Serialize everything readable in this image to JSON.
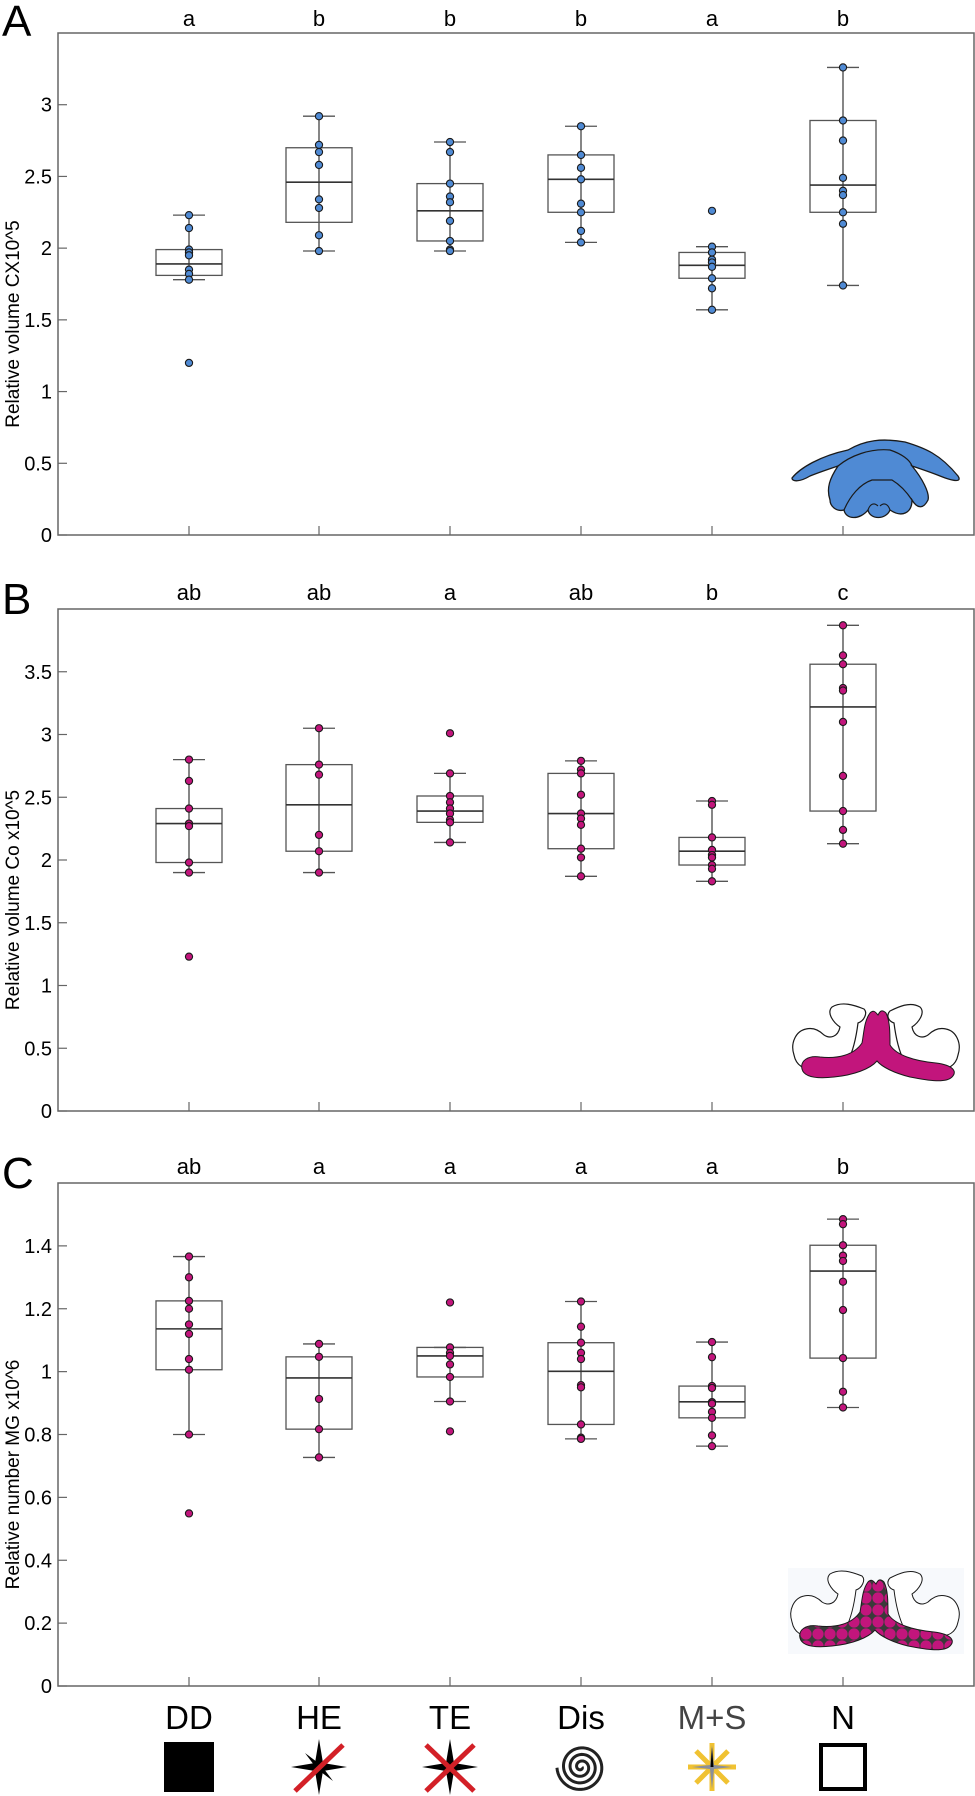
{
  "figure": {
    "categories": [
      "DD",
      "HE",
      "TE",
      "Dis",
      "M+S",
      "N"
    ],
    "category_label_colors": [
      "#000000",
      "#000000",
      "#000000",
      "#000000",
      "#444444",
      "#000000"
    ],
    "category_symbols": [
      {
        "name": "filled-square-icon",
        "desc": "black filled square"
      },
      {
        "name": "crossed-star-icon",
        "desc": "black compass star with single red slash"
      },
      {
        "name": "double-crossed-star-icon",
        "desc": "black compass star with red X"
      },
      {
        "name": "spiral-icon",
        "desc": "black spiral"
      },
      {
        "name": "yellow-asterisk-star-icon",
        "desc": "yellow asterisk over grey star"
      },
      {
        "name": "open-square-icon",
        "desc": "open black square"
      }
    ],
    "colors": {
      "blue_point": "#4f8ad4",
      "magenta_point": "#c2157c",
      "box_stroke": "#555555",
      "axis": "#666666",
      "red_cross": "#d32027",
      "yellow_star": "#f0c232"
    }
  },
  "chart_data": [
    {
      "type": "box",
      "panel": "A",
      "title": "",
      "xlabel": "",
      "ylabel": "Relative volume CX10^5",
      "ylim": [
        0,
        3.5
      ],
      "yticks": [
        0,
        0.5,
        1,
        1.5,
        2,
        2.5,
        3
      ],
      "ytick_labels": [
        "0",
        "0.5",
        "1",
        "1.5",
        "2",
        "2.5",
        "3"
      ],
      "point_color": "#4f8ad4",
      "inset": "blue-brain-cx-icon",
      "categories": [
        "DD",
        "HE",
        "TE",
        "Dis",
        "M+S",
        "N"
      ],
      "significance": [
        "a",
        "b",
        "b",
        "b",
        "a",
        "b"
      ],
      "series": [
        {
          "name": "DD",
          "q1": 1.81,
          "median": 1.89,
          "q3": 1.99,
          "whisker_low": 1.78,
          "whisker_high": 2.23,
          "points": [
            2.23,
            2.14,
            1.99,
            1.97,
            1.95,
            1.85,
            1.82,
            1.78,
            1.2
          ]
        },
        {
          "name": "HE",
          "q1": 2.18,
          "median": 2.46,
          "q3": 2.7,
          "whisker_low": 1.98,
          "whisker_high": 2.92,
          "points": [
            2.92,
            2.72,
            2.67,
            2.58,
            2.34,
            2.28,
            2.09,
            1.98
          ]
        },
        {
          "name": "TE",
          "q1": 2.05,
          "median": 2.26,
          "q3": 2.45,
          "whisker_low": 1.98,
          "whisker_high": 2.74,
          "points": [
            2.74,
            2.67,
            2.45,
            2.36,
            2.32,
            2.19,
            2.05,
            1.99,
            1.98
          ]
        },
        {
          "name": "Dis",
          "q1": 2.25,
          "median": 2.48,
          "q3": 2.65,
          "whisker_low": 2.04,
          "whisker_high": 2.85,
          "points": [
            2.85,
            2.65,
            2.56,
            2.48,
            2.31,
            2.25,
            2.12,
            2.04
          ]
        },
        {
          "name": "M+S",
          "q1": 1.79,
          "median": 1.88,
          "q3": 1.97,
          "whisker_low": 1.57,
          "whisker_high": 2.01,
          "points": [
            2.26,
            2.01,
            1.97,
            1.92,
            1.9,
            1.87,
            1.79,
            1.72,
            1.57
          ]
        },
        {
          "name": "N",
          "q1": 2.25,
          "median": 2.44,
          "q3": 2.89,
          "whisker_low": 1.74,
          "whisker_high": 3.26,
          "points": [
            3.26,
            2.89,
            2.75,
            2.49,
            2.4,
            2.37,
            2.25,
            2.17,
            1.74
          ]
        }
      ]
    },
    {
      "type": "box",
      "panel": "B",
      "title": "",
      "xlabel": "",
      "ylabel": "Relative volume Co x10^5",
      "ylim": [
        0,
        4
      ],
      "yticks": [
        0,
        0.5,
        1,
        1.5,
        2,
        2.5,
        3,
        3.5
      ],
      "ytick_labels": [
        "0",
        "0.5",
        "1",
        "1.5",
        "2",
        "2.5",
        "3",
        "3.5"
      ],
      "point_color": "#c2157c",
      "inset": "magenta-brain-co-icon",
      "categories": [
        "DD",
        "HE",
        "TE",
        "Dis",
        "M+S",
        "N"
      ],
      "significance": [
        "ab",
        "ab",
        "a",
        "ab",
        "b",
        "c"
      ],
      "series": [
        {
          "name": "DD",
          "q1": 1.98,
          "median": 2.29,
          "q3": 2.41,
          "whisker_low": 1.9,
          "whisker_high": 2.8,
          "points": [
            2.8,
            2.63,
            2.41,
            2.29,
            2.27,
            1.98,
            1.9,
            1.23
          ]
        },
        {
          "name": "HE",
          "q1": 2.07,
          "median": 2.44,
          "q3": 2.76,
          "whisker_low": 1.9,
          "whisker_high": 3.05,
          "points": [
            3.05,
            2.76,
            2.68,
            2.2,
            2.07,
            1.9
          ]
        },
        {
          "name": "TE",
          "q1": 2.3,
          "median": 2.39,
          "q3": 2.51,
          "whisker_low": 2.14,
          "whisker_high": 2.69,
          "points": [
            3.01,
            2.69,
            2.51,
            2.46,
            2.41,
            2.37,
            2.32,
            2.3,
            2.14
          ]
        },
        {
          "name": "Dis",
          "q1": 2.09,
          "median": 2.37,
          "q3": 2.69,
          "whisker_low": 1.87,
          "whisker_high": 2.79,
          "points": [
            2.79,
            2.72,
            2.69,
            2.52,
            2.37,
            2.33,
            2.28,
            2.09,
            2.02,
            1.87
          ]
        },
        {
          "name": "M+S",
          "q1": 1.96,
          "median": 2.07,
          "q3": 2.18,
          "whisker_low": 1.83,
          "whisker_high": 2.47,
          "points": [
            2.47,
            2.44,
            2.18,
            2.08,
            2.04,
            2.02,
            1.96,
            1.93,
            1.83
          ]
        },
        {
          "name": "N",
          "q1": 2.39,
          "median": 3.22,
          "q3": 3.56,
          "whisker_low": 2.13,
          "whisker_high": 3.87,
          "points": [
            3.87,
            3.63,
            3.56,
            3.37,
            3.35,
            3.1,
            2.67,
            2.39,
            2.24,
            2.13
          ]
        }
      ]
    },
    {
      "type": "box",
      "panel": "C",
      "title": "",
      "xlabel": "",
      "ylabel": "Relative number MG x10^6",
      "ylim": [
        0,
        1.6
      ],
      "yticks": [
        0,
        0.2,
        0.4,
        0.6,
        0.8,
        1,
        1.2,
        1.4
      ],
      "ytick_labels": [
        "0",
        "0.2",
        "0.4",
        "0.6",
        "0.8",
        "1",
        "1.2",
        "1.4"
      ],
      "point_color": "#c2157c",
      "inset": "magenta-brain-mg-cells-icon",
      "categories": [
        "DD",
        "HE",
        "TE",
        "Dis",
        "M+S",
        "N"
      ],
      "significance": [
        "ab",
        "a",
        "a",
        "a",
        "a",
        "b"
      ],
      "series": [
        {
          "name": "DD",
          "q1": 1.006,
          "median": 1.136,
          "q3": 1.225,
          "whisker_low": 0.8,
          "whisker_high": 1.366,
          "points": [
            1.366,
            1.3,
            1.225,
            1.2,
            1.15,
            1.12,
            1.04,
            1.006,
            0.8,
            0.549
          ]
        },
        {
          "name": "HE",
          "q1": 0.817,
          "median": 0.98,
          "q3": 1.047,
          "whisker_low": 0.727,
          "whisker_high": 1.088,
          "points": [
            1.088,
            1.047,
            0.913,
            0.817,
            0.727
          ]
        },
        {
          "name": "TE",
          "q1": 0.983,
          "median": 1.05,
          "q3": 1.077,
          "whisker_low": 0.905,
          "whisker_high": 1.077,
          "points": [
            1.22,
            1.077,
            1.06,
            1.05,
            1.023,
            0.983,
            0.905,
            0.81
          ]
        },
        {
          "name": "Dis",
          "q1": 0.832,
          "median": 1.001,
          "q3": 1.092,
          "whisker_low": 0.786,
          "whisker_high": 1.223,
          "points": [
            1.223,
            1.143,
            1.092,
            1.06,
            1.04,
            0.957,
            0.95,
            0.832,
            0.79,
            0.786
          ]
        },
        {
          "name": "M+S",
          "q1": 0.853,
          "median": 0.904,
          "q3": 0.954,
          "whisker_low": 0.763,
          "whisker_high": 1.094,
          "points": [
            1.094,
            1.046,
            0.954,
            0.948,
            0.903,
            0.898,
            0.872,
            0.853,
            0.797,
            0.763
          ]
        },
        {
          "name": "N",
          "q1": 1.043,
          "median": 1.32,
          "q3": 1.402,
          "whisker_low": 0.886,
          "whisker_high": 1.485,
          "points": [
            1.485,
            1.469,
            1.402,
            1.369,
            1.352,
            1.286,
            1.196,
            1.043,
            0.936,
            0.886
          ]
        }
      ]
    }
  ]
}
